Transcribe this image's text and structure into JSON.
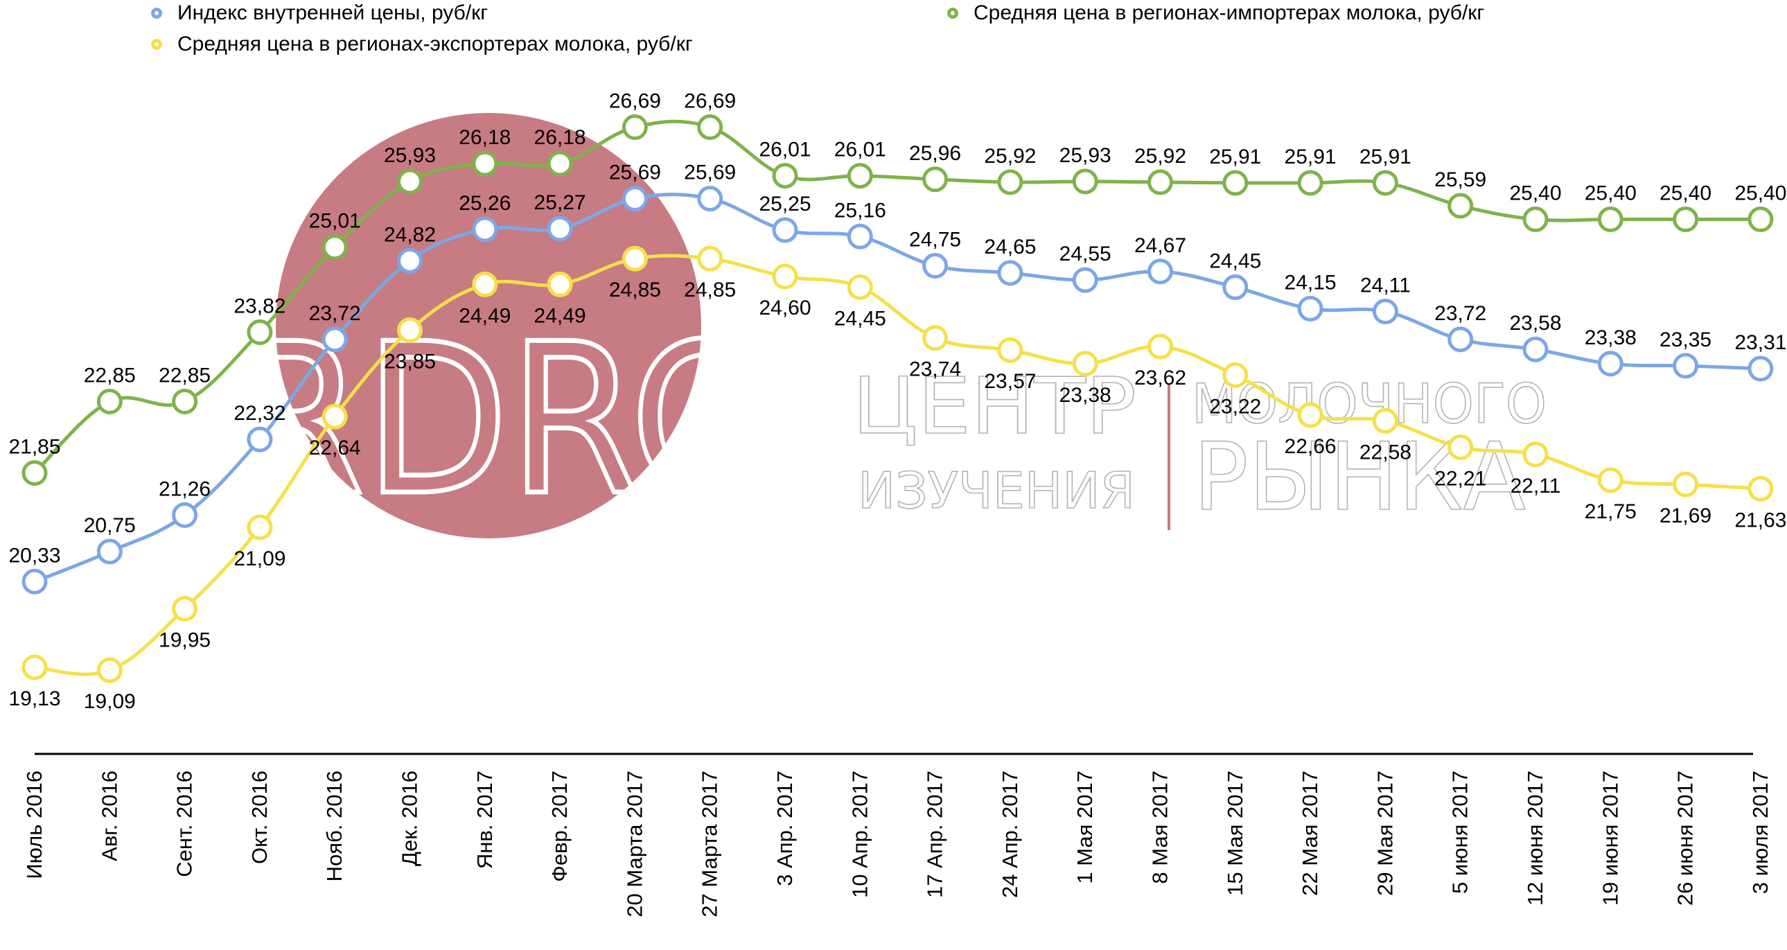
{
  "colors": {
    "blue": "#7ba7e8",
    "green": "#7fb34a",
    "yellow": "#f5e04a",
    "watermark_circle": "#c77b82",
    "axis": "#000000"
  },
  "legend": [
    {
      "label": "Индекс внутренней цены, руб/кг",
      "color": "#7ba7e8"
    },
    {
      "label": "Средняя цена в регионах-экспортерах молока, руб/кг",
      "color": "#f5e04a"
    },
    {
      "label": "Средняя цена в регионах-импортерах молока, руб/кг",
      "color": "#7fb34a"
    }
  ],
  "watermark": {
    "logo_text": "RDRC",
    "line1_left": "ЦЕНТР",
    "line1_right": "МОЛОЧНОГО",
    "line2_left": "ИЗУЧЕНИЯ",
    "line2_right": "РЫНКА"
  },
  "chart_data": {
    "type": "line",
    "categories": [
      "Июль 2016",
      "Авг. 2016",
      "Сент. 2016",
      "Окт. 2016",
      "Нояб. 2016",
      "Дек. 2016",
      "Янв. 2017",
      "Февр. 2017",
      "20 Марта 2017",
      "27 Марта 2017",
      "3 Апр. 2017",
      "10 Апр. 2017",
      "17 Апр. 2017",
      "24 Апр. 2017",
      "1 Мая 2017",
      "8 Мая 2017",
      "15 Мая 2017",
      "22 Мая 2017",
      "29 Мая 2017",
      "5 июня 2017",
      "12 июня 2017",
      "19 июня 2017",
      "26 июня 2017",
      "3 июля 2017"
    ],
    "series": [
      {
        "name": "Средняя цена в регионах-импортерах молока, руб/кг",
        "color": "#7fb34a",
        "label_position": "above",
        "values": [
          21.85,
          22.85,
          22.85,
          23.82,
          25.01,
          25.93,
          26.18,
          26.18,
          26.69,
          26.69,
          26.01,
          26.01,
          25.96,
          25.92,
          25.93,
          25.92,
          25.91,
          25.91,
          25.91,
          25.59,
          25.4,
          25.4,
          25.4,
          25.4
        ],
        "labels": [
          "21,85",
          "22,85",
          "22,85",
          "23,82",
          "25,01",
          "25,93",
          "26,18",
          "26,18",
          "26,69",
          "26,69",
          "26,01",
          "26,01",
          "25,96",
          "25,92",
          "25,93",
          "25,92",
          "25,91",
          "25,91",
          "25,91",
          "25,59",
          "25,40",
          "25,40",
          "25,40",
          "25,40"
        ]
      },
      {
        "name": "Индекс внутренней цены, руб/кг",
        "color": "#7ba7e8",
        "label_position": "above",
        "values": [
          20.33,
          20.75,
          21.26,
          22.32,
          23.72,
          24.82,
          25.26,
          25.27,
          25.69,
          25.69,
          25.25,
          25.16,
          24.75,
          24.65,
          24.55,
          24.67,
          24.45,
          24.15,
          24.11,
          23.72,
          23.58,
          23.38,
          23.35,
          23.31
        ],
        "labels": [
          "20,33",
          "20,75",
          "21,26",
          "22,32",
          "23,72",
          "24,82",
          "25,26",
          "25,27",
          "25,69",
          "25,69",
          "25,25",
          "25,16",
          "24,75",
          "24,65",
          "24,55",
          "24,67",
          "24,45",
          "24,15",
          "24,11",
          "23,72",
          "23,58",
          "23,38",
          "23,35",
          "23,31"
        ]
      },
      {
        "name": "Средняя цена в регионах-экспортерах молока, руб/кг",
        "color": "#f5e04a",
        "label_position": "below",
        "values": [
          19.13,
          19.09,
          19.95,
          21.09,
          22.64,
          23.85,
          24.49,
          24.49,
          24.85,
          24.85,
          24.6,
          24.45,
          23.74,
          23.57,
          23.38,
          23.62,
          23.22,
          22.66,
          22.58,
          22.21,
          22.11,
          21.75,
          21.69,
          21.63
        ],
        "labels": [
          "19,13",
          "19,09",
          "19,95",
          "21,09",
          "22,64",
          "23,85",
          "24,49",
          "24,49",
          "24,85",
          "24,85",
          "24,60",
          "24,45",
          "23,74",
          "23,57",
          "23,38",
          "23,62",
          "23,22",
          "22,66",
          "22,58",
          "22,21",
          "22,11",
          "21,75",
          "21,69",
          "21,63"
        ]
      }
    ],
    "title": "",
    "xlabel": "",
    "ylabel": "",
    "ylim": [
      18.5,
      27.5
    ],
    "grid": false,
    "legend_placement": "top"
  }
}
